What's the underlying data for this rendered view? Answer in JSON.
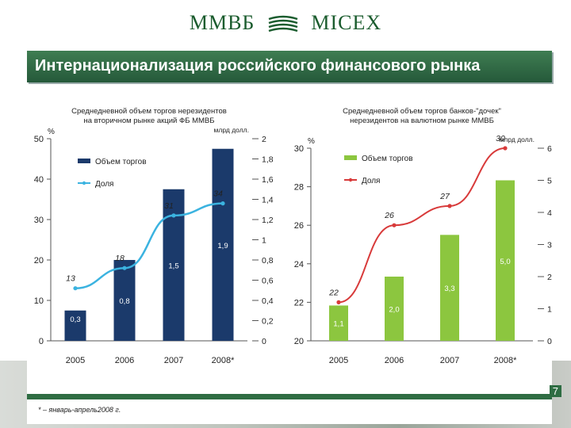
{
  "header": {
    "logo_left": "ММВБ",
    "logo_right": "MICEX",
    "title": "Интернационализация российского финансового рынка"
  },
  "page_number": "7",
  "footnote": "* – январь-апрель2008 г.",
  "colors": {
    "navy": "#1b3a6b",
    "lightblue": "#3bb3e0",
    "green": "#8cc63f",
    "red": "#d83a3a",
    "brand": "#2f6d43"
  },
  "chart_data": [
    {
      "type": "bar",
      "title": "Среднедневной объем торгов нерезидентов на вторичном рынке акций ФБ ММВБ",
      "left_axis_unit": "%",
      "right_axis_unit": "млрд долл.",
      "categories": [
        "2005",
        "2006",
        "2007",
        "2008*"
      ],
      "series": [
        {
          "name": "Объем торгов",
          "kind": "bar",
          "axis": "right",
          "values": [
            0.3,
            0.8,
            1.5,
            1.9
          ],
          "labels": [
            "0,3",
            "0,8",
            "1,5",
            "1,9"
          ]
        },
        {
          "name": "Доля",
          "kind": "line",
          "axis": "left",
          "values": [
            13,
            18,
            31,
            34
          ],
          "labels": [
            "13",
            "18",
            "31",
            "34"
          ]
        }
      ],
      "ylim_left": [
        0,
        50
      ],
      "left_ticks": [
        "0",
        "10",
        "20",
        "30",
        "40",
        "50"
      ],
      "ylim_right": [
        0,
        2
      ],
      "right_ticks": [
        "0",
        "0,2",
        "0,4",
        "0,6",
        "0,8",
        "1",
        "1,2",
        "1,4",
        "1,6",
        "1,8",
        "2"
      ]
    },
    {
      "type": "bar",
      "title": "Среднедневной объем торгов банков-\"дочек\" нерезидентов на валютном рынке ММВБ",
      "left_axis_unit": "%",
      "right_axis_unit": "млрд долл.",
      "categories": [
        "2005",
        "2006",
        "2007",
        "2008*"
      ],
      "series": [
        {
          "name": "Объем торгов",
          "kind": "bar",
          "axis": "right",
          "values": [
            1.1,
            2.0,
            3.3,
            5.0
          ],
          "labels": [
            "1,1",
            "2,0",
            "3,3",
            "5,0"
          ]
        },
        {
          "name": "Доля",
          "kind": "line",
          "axis": "left",
          "values": [
            22,
            26,
            27,
            30
          ],
          "labels": [
            "22",
            "26",
            "27",
            "30"
          ]
        }
      ],
      "ylim_left": [
        20,
        30
      ],
      "left_ticks": [
        "20",
        "22",
        "24",
        "26",
        "28",
        "30"
      ],
      "ylim_right": [
        0,
        6
      ],
      "right_ticks": [
        "0",
        "1",
        "2",
        "3",
        "4",
        "5",
        "6"
      ]
    }
  ]
}
